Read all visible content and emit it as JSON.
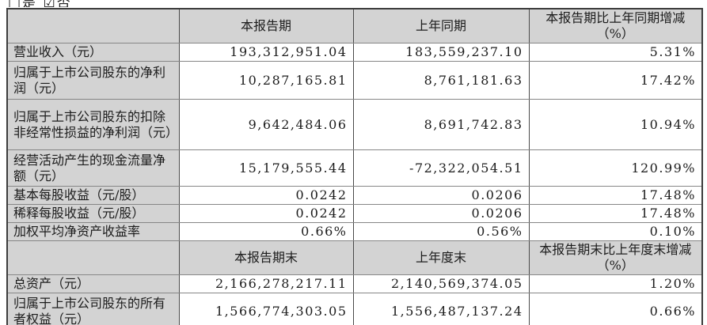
{
  "page": {
    "top_note": "□是 ☑否"
  },
  "colors": {
    "header_bg": "#d3d3d3",
    "label_bg": "#d3d3d3",
    "cell_bg": "#ffffff",
    "outer_border": "#3c3c3c",
    "inner_border": "#868686",
    "text": "#1c1c1c"
  },
  "table": {
    "period_header": {
      "blank": "",
      "current": "本报告期",
      "prior": "上年同期",
      "change_title": "本报告期比上年同期增减",
      "change_unit": "（%）"
    },
    "period_rows": [
      {
        "label": "营业收入（元）",
        "current": "193,312,951.04",
        "prior": "183,559,237.10",
        "change": "5.31%"
      },
      {
        "label": "归属于上市公司股东的净利润（元）",
        "current": "10,287,165.81",
        "prior": "8,761,181.63",
        "change": "17.42%"
      },
      {
        "label": "归属于上市公司股东的扣除非经常性损益的净利润（元）",
        "current": "9,642,484.06",
        "prior": "8,691,742.83",
        "change": "10.94%"
      },
      {
        "label": "经营活动产生的现金流量净额（元）",
        "current": "15,179,555.44",
        "prior": "-72,322,054.51",
        "change": "120.99%"
      },
      {
        "label": "基本每股收益（元/股）",
        "current": "0.0242",
        "prior": "0.0206",
        "change": "17.48%"
      },
      {
        "label": "稀释每股收益（元/股）",
        "current": "0.0242",
        "prior": "0.0206",
        "change": "17.48%"
      },
      {
        "label": "加权平均净资产收益率",
        "current": "0.66%",
        "prior": "0.56%",
        "change": "0.10%"
      }
    ],
    "eop_header": {
      "blank": "",
      "current": "本报告期末",
      "prior": "上年度末",
      "change_title": "本报告期末比上年度末增减",
      "change_unit": "（%）"
    },
    "eop_rows": [
      {
        "label": "总资产（元）",
        "current": "2,166,278,217.11",
        "prior": "2,140,569,374.05",
        "change": "1.20%"
      },
      {
        "label": "归属于上市公司股东的所有者权益（元）",
        "current": "1,566,774,303.05",
        "prior": "1,556,487,137.24",
        "change": "0.66%"
      }
    ]
  }
}
